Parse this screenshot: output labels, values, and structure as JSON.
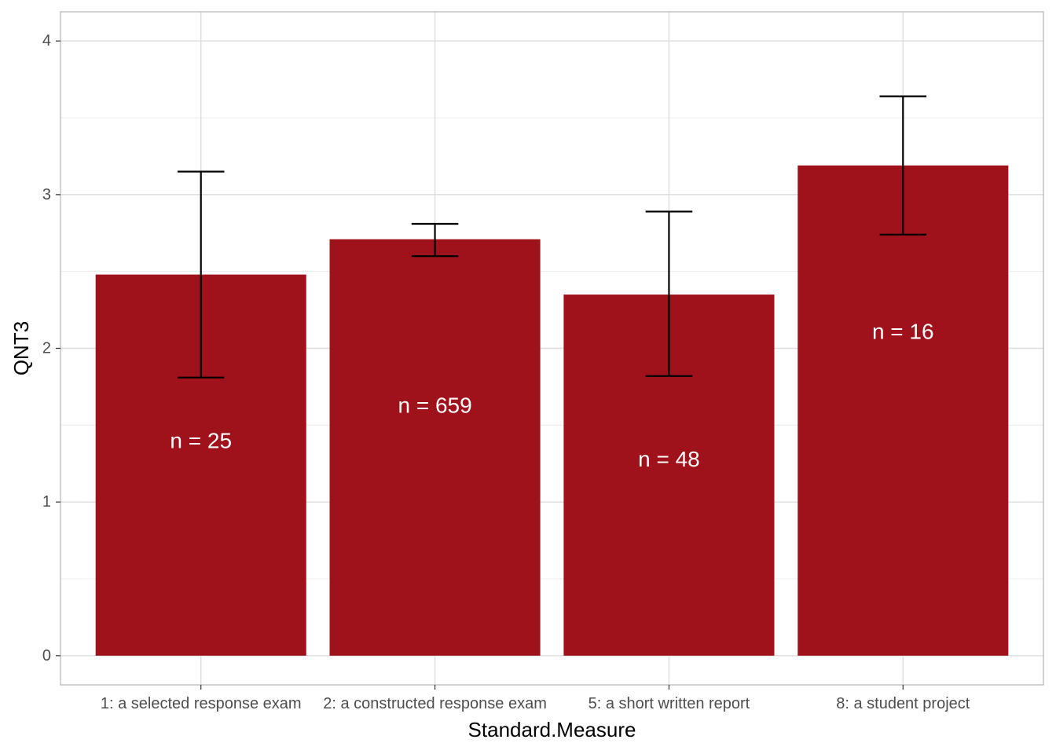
{
  "chart_data": {
    "type": "bar",
    "categories": [
      "1: a selected response exam",
      "2: a constructed response exam",
      "5: a short written report",
      "8: a student project"
    ],
    "values": [
      2.48,
      2.71,
      2.35,
      3.19
    ],
    "error_low": [
      1.81,
      2.6,
      1.82,
      2.74
    ],
    "error_high": [
      3.15,
      2.81,
      2.89,
      3.64
    ],
    "bar_labels": [
      "n = 25",
      "n = 659",
      "n = 48",
      "n = 16"
    ],
    "bar_label_y": [
      1.4,
      1.63,
      1.28,
      2.11
    ],
    "xlabel": "Standard.Measure",
    "ylabel": "QNT3",
    "ylim": [
      -0.19,
      4.19
    ],
    "yticks": [
      "0",
      "1",
      "2",
      "3",
      "4"
    ],
    "grid": true,
    "colors": {
      "bar": "#a0121b",
      "errorbar": "#000000",
      "grid": "#dedede",
      "border": "#b3b3b3"
    }
  }
}
